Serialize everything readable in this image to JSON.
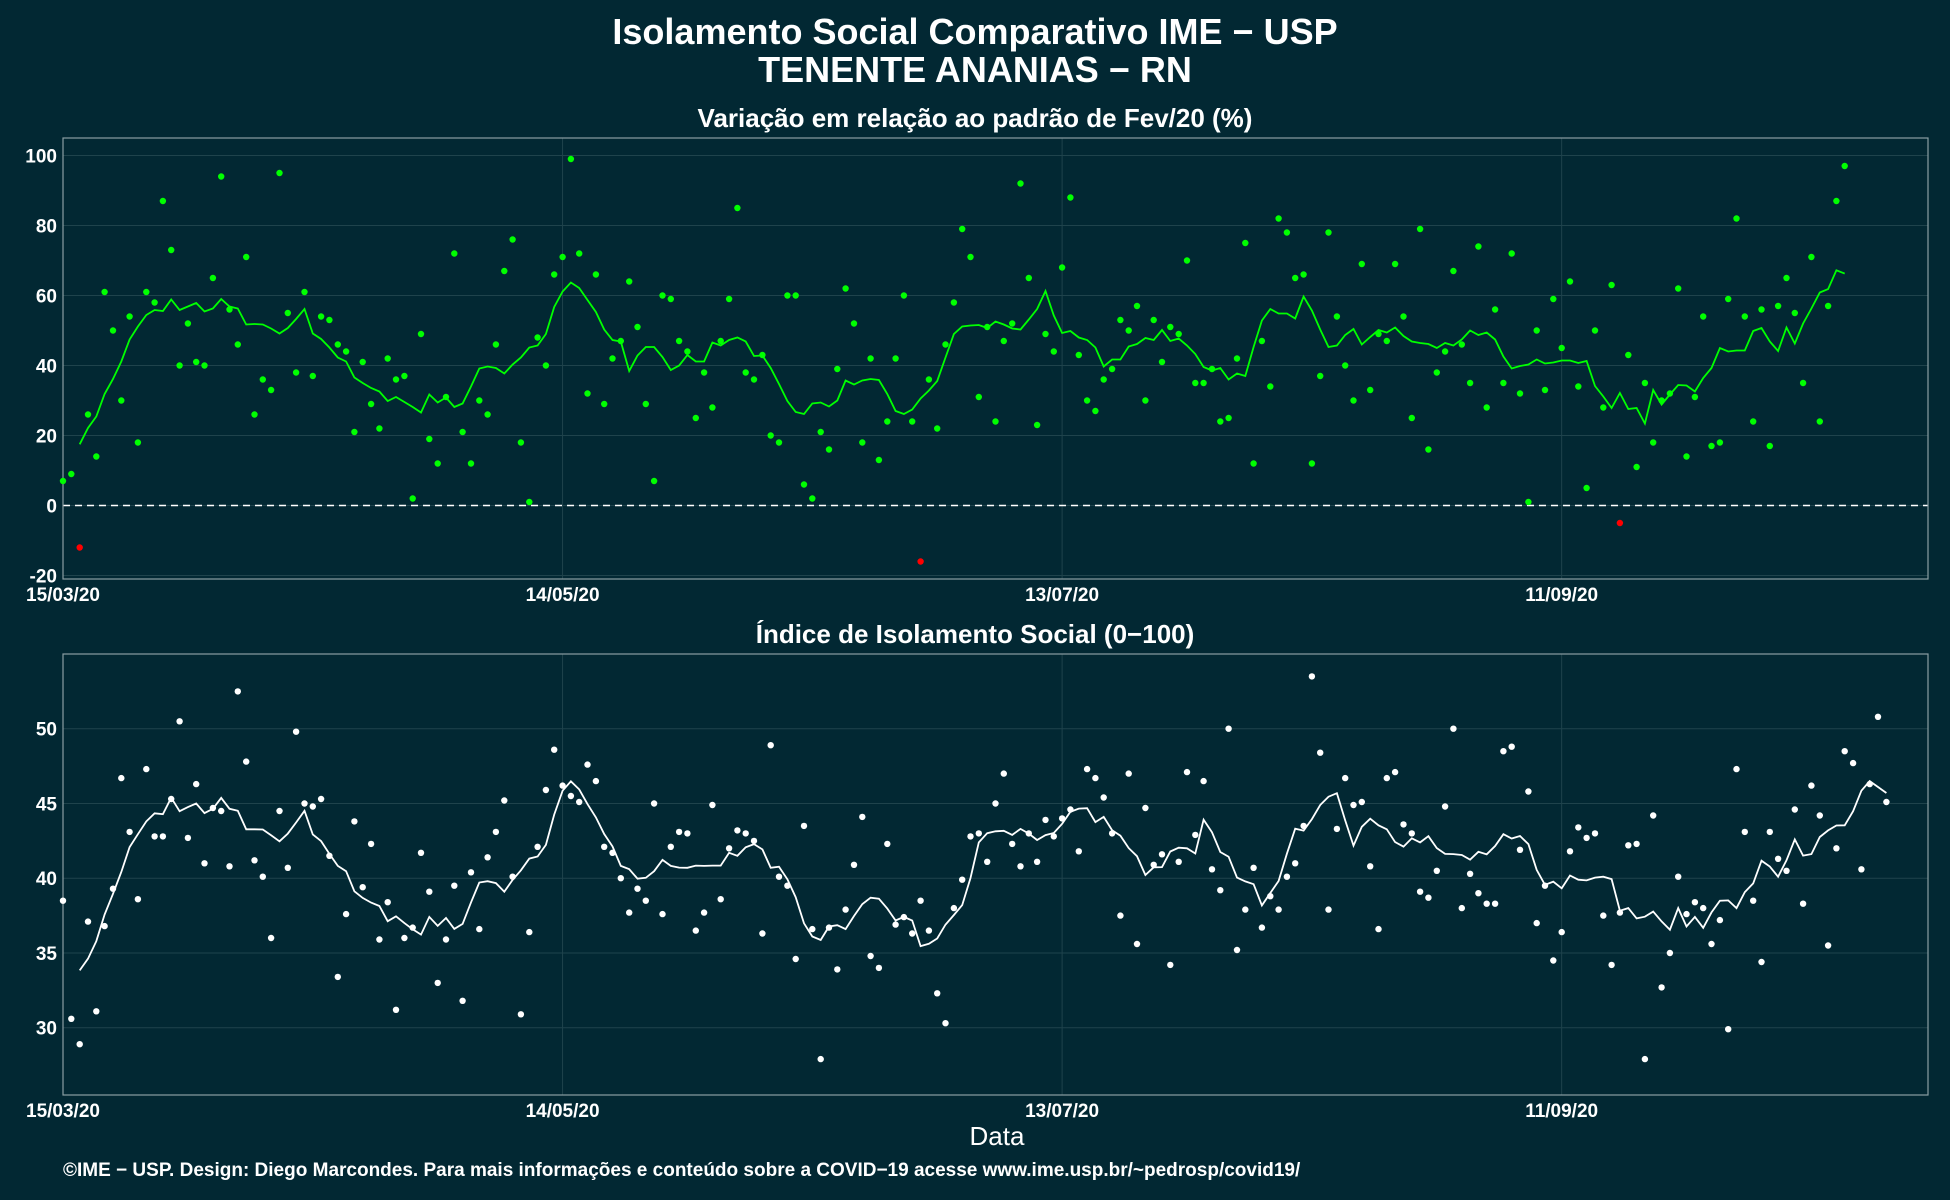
{
  "title_line1": "Isolamento Social Comparativo IME − USP",
  "title_line2": "TENENTE ANANIAS − RN",
  "footer": "©IME − USP. Design: Diego Marcondes. Para mais informações e conteúdo sobre a COVID−19 acesse www.ime.usp.br/~pedrosp/covid19/",
  "colors": {
    "background": "#022833",
    "panel_border": "#8a9ea3",
    "grid": "#1f434c",
    "positive_point": "#00ff00",
    "negative_point": "#ff0000",
    "index_point": "#ffffff"
  },
  "chart_data": [
    {
      "type": "scatter",
      "title": "Variação em relação ao padrão de Fev/20 (%)",
      "xlabel": "",
      "ylabel": "",
      "x_start": "15/03/20",
      "x_ticks": [
        {
          "label": "15/03/20",
          "day": 0
        },
        {
          "label": "14/05/20",
          "day": 60
        },
        {
          "label": "13/07/20",
          "day": 120
        },
        {
          "label": "11/09/20",
          "day": 180
        }
      ],
      "y_ticks": [
        -20,
        0,
        20,
        40,
        60,
        80,
        100
      ],
      "ylim": [
        -21,
        105
      ],
      "xlim": [
        0,
        224
      ],
      "reference_line": 0,
      "grid": true,
      "series": [
        {
          "values": [
            7,
            9,
            -12,
            26,
            14,
            61,
            50,
            30,
            54,
            18,
            61,
            58,
            87,
            73,
            40,
            52,
            41,
            40,
            65,
            94,
            56,
            46,
            71,
            26,
            36,
            33,
            95,
            55,
            38,
            61,
            37,
            54,
            53,
            46,
            44,
            21,
            41,
            29,
            22,
            42,
            36,
            37,
            2,
            49,
            19,
            12,
            31,
            72,
            21,
            12,
            30,
            26,
            46,
            67,
            76,
            18,
            1,
            48,
            40,
            66,
            71,
            99,
            72,
            32,
            66,
            29,
            42,
            47,
            64,
            51,
            29,
            7,
            60,
            59,
            47,
            44,
            25,
            38,
            28,
            47,
            59,
            85,
            38,
            36,
            43,
            20,
            18,
            60,
            60,
            6,
            2,
            21,
            16,
            39,
            62,
            52,
            18,
            42,
            13,
            24,
            42,
            60,
            24,
            -16,
            36,
            22,
            46,
            58,
            79,
            71,
            31,
            51,
            24,
            47,
            52,
            92,
            65,
            23,
            49,
            44,
            68,
            88,
            43,
            30,
            27,
            36,
            39,
            53,
            50,
            57,
            30,
            53,
            41,
            51,
            49,
            70,
            35,
            35,
            39,
            24,
            25,
            42,
            75,
            12,
            47,
            34,
            82,
            78,
            65,
            66,
            12,
            37,
            78,
            54,
            40,
            30,
            69,
            33,
            49,
            47,
            69,
            54,
            25,
            79,
            16,
            38,
            44,
            67,
            46,
            35,
            74,
            28,
            56,
            35,
            72,
            32,
            1,
            50,
            33,
            59,
            45,
            64,
            34,
            5,
            50,
            28,
            63,
            -5,
            43,
            11,
            35,
            18,
            30,
            32,
            62,
            14,
            31,
            54,
            17,
            18,
            59,
            82,
            54,
            24,
            56,
            17,
            57,
            65,
            55,
            35,
            71,
            24,
            57,
            87,
            97
          ]
        }
      ]
    },
    {
      "type": "scatter",
      "title": "Índice de Isolamento Social (0−100)",
      "xlabel": "Data",
      "ylabel": "",
      "x_start": "15/03/20",
      "x_ticks": [
        {
          "label": "15/03/20",
          "day": 0
        },
        {
          "label": "14/05/20",
          "day": 60
        },
        {
          "label": "13/07/20",
          "day": 120
        },
        {
          "label": "11/09/20",
          "day": 180
        }
      ],
      "y_ticks": [
        30,
        35,
        40,
        45,
        50
      ],
      "ylim": [
        25.5,
        55
      ],
      "xlim": [
        0,
        224
      ],
      "grid": true,
      "series": [
        {
          "values": [
            38.5,
            30.6,
            28.9,
            37.1,
            31.1,
            36.8,
            39.3,
            46.7,
            43.1,
            38.6,
            47.3,
            42.8,
            42.8,
            45.3,
            50.5,
            42.7,
            46.3,
            41.0,
            44.7,
            44.5,
            40.8,
            52.5,
            47.8,
            41.2,
            40.1,
            36.0,
            44.5,
            40.7,
            49.8,
            45.0,
            44.8,
            45.3,
            41.5,
            33.4,
            37.6,
            43.8,
            39.4,
            42.3,
            35.9,
            38.4,
            31.2,
            36.0,
            36.7,
            41.7,
            39.1,
            33.0,
            35.9,
            39.5,
            31.8,
            40.4,
            36.6,
            41.4,
            43.1,
            45.2,
            40.1,
            30.9,
            36.4,
            42.1,
            45.9,
            48.6,
            46.2,
            45.5,
            45.1,
            47.6,
            46.5,
            42.1,
            41.7,
            40.0,
            37.7,
            39.3,
            38.5,
            45.0,
            37.6,
            42.1,
            43.1,
            43.0,
            36.5,
            37.7,
            44.9,
            38.6,
            42.0,
            43.2,
            43.0,
            42.5,
            36.3,
            48.9,
            40.1,
            39.5,
            34.6,
            43.5,
            36.6,
            27.9,
            36.7,
            33.9,
            37.9,
            40.9,
            44.1,
            34.8,
            34.0,
            42.3,
            36.9,
            37.4,
            36.3,
            38.5,
            36.5,
            32.3,
            30.3,
            38.0,
            39.9,
            42.8,
            43.0,
            41.1,
            45.0,
            47.0,
            42.3,
            40.8,
            43.0,
            41.1,
            43.9,
            42.8,
            44.0,
            44.6,
            41.8,
            47.3,
            46.7,
            45.4,
            43.0,
            37.5,
            47.0,
            35.6,
            44.7,
            40.9,
            41.6,
            34.2,
            41.1,
            47.1,
            42.9,
            46.5,
            40.6,
            39.2,
            50.0,
            35.2,
            37.9,
            40.7,
            36.7,
            38.8,
            37.9,
            40.1,
            41.0,
            43.5,
            53.5,
            48.4,
            37.9,
            43.3,
            46.7,
            44.9,
            45.1,
            40.8,
            36.6,
            46.7,
            47.1,
            43.6,
            43.0,
            39.1,
            38.7,
            40.5,
            44.8,
            50.0,
            38.0,
            40.3,
            39.0,
            38.3,
            38.3,
            48.5,
            48.8,
            41.9,
            45.8,
            37.0,
            39.5,
            34.5,
            36.4,
            41.8,
            43.4,
            42.7,
            43.0,
            37.5,
            34.2,
            37.7,
            42.2,
            42.3,
            27.9,
            44.2,
            32.7,
            35.0,
            40.1,
            37.6,
            38.4,
            38.0,
            35.6,
            37.2,
            29.9,
            47.3,
            43.1,
            38.5,
            34.4,
            43.1,
            41.3,
            40.5,
            44.6,
            38.3,
            46.2,
            44.2,
            35.5,
            42.0,
            48.5,
            47.7,
            40.6,
            46.3,
            50.8,
            45.1
          ]
        }
      ]
    }
  ]
}
